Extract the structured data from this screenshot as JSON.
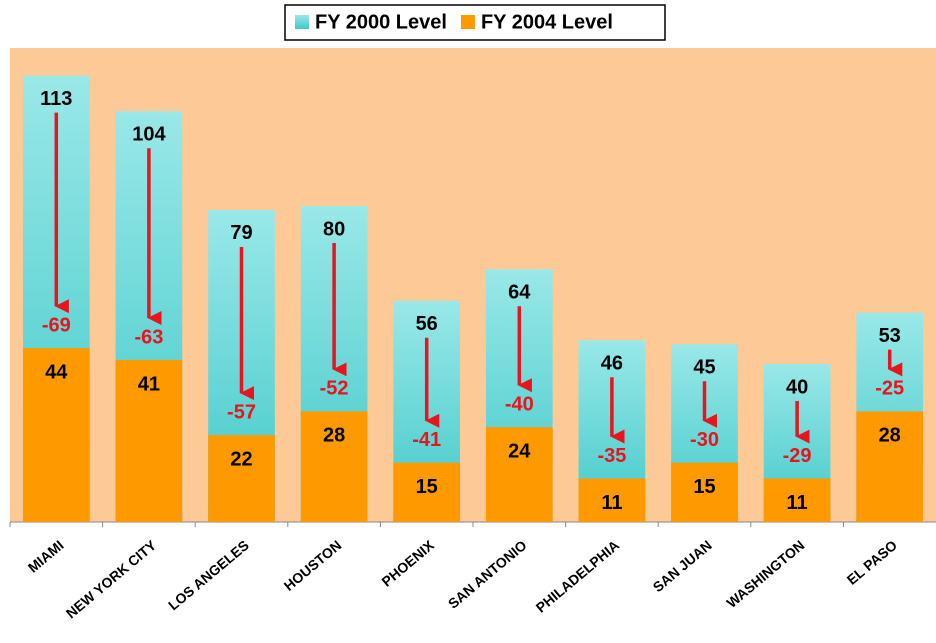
{
  "chart_data": {
    "type": "bar",
    "categories": [
      "MIAMI",
      "NEW YORK CITY",
      "LOS ANGELES",
      "HOUSTON",
      "PHOENIX",
      "SAN ANTONIO",
      "PHILADELPHIA",
      "SAN JUAN",
      "WASHINGTON",
      "EL PASO"
    ],
    "series": [
      {
        "name": "FY 2000 Level",
        "color": "#4fd0d0",
        "values": [
          113,
          104,
          79,
          80,
          56,
          64,
          46,
          45,
          40,
          53
        ]
      },
      {
        "name": "FY 2004 Level",
        "color": "#ff9900",
        "values": [
          44,
          41,
          22,
          28,
          15,
          24,
          11,
          15,
          11,
          28
        ]
      }
    ],
    "changes": {
      "color": "#e8141e",
      "values": [
        -69,
        -63,
        -57,
        -52,
        -41,
        -40,
        -35,
        -30,
        -29,
        -25
      ]
    },
    "ylim": [
      0,
      120
    ],
    "background": "#fcc997",
    "legend": "top"
  }
}
